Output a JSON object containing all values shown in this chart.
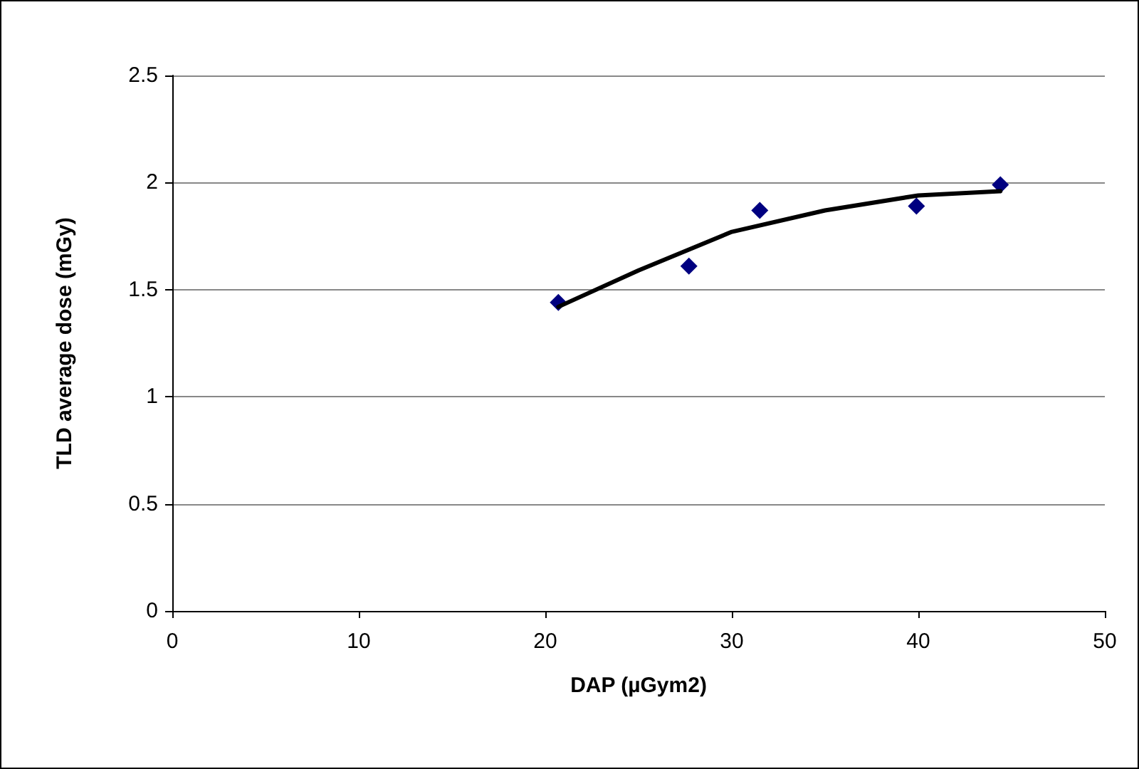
{
  "chart_data": {
    "type": "scatter",
    "xlabel": "DAP (µGym2)",
    "ylabel": "TLD average dose (mGy)",
    "x": [
      20.7,
      27.7,
      31.5,
      39.9,
      44.4
    ],
    "series": [
      {
        "color": "#000080",
        "marker": "diamond",
        "values": [
          1.44,
          1.61,
          1.87,
          1.89,
          1.99
        ]
      },
      {
        "type": "line",
        "color": "#000000",
        "marker": "none",
        "line_style": "solid",
        "x": [
          20.7,
          25,
          30,
          35,
          40,
          44.4
        ],
        "values": [
          1.42,
          1.59,
          1.77,
          1.87,
          1.94,
          1.96
        ]
      }
    ],
    "xlim": [
      0,
      50
    ],
    "xticks": [
      0,
      10,
      20,
      30,
      40,
      50
    ],
    "ylim": [
      0,
      2.5
    ],
    "yticks": [
      0,
      0.5,
      1,
      1.5,
      2,
      2.5
    ],
    "grid": "y"
  }
}
